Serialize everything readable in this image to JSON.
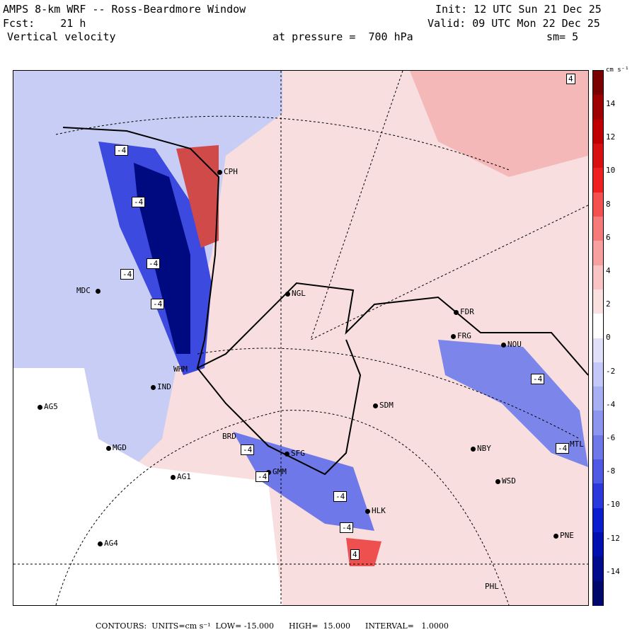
{
  "header": {
    "line1_left": "AMPS 8-km WRF -- Ross-Beardmore Window",
    "line1_right": "Init: 12 UTC Sun 21 Dec 25",
    "line2_left": "Fcst:    21 h",
    "line2_right": "Valid: 09 UTC Mon 22 Dec 25",
    "line3_left": "Vertical velocity",
    "line3_mid": "at pressure =  700 hPa",
    "line3_right": "sm= 5"
  },
  "stations": [
    {
      "name": "CPH"
    },
    {
      "name": "MDC"
    },
    {
      "name": "NGL"
    },
    {
      "name": "FDR"
    },
    {
      "name": "FRG"
    },
    {
      "name": "NOU"
    },
    {
      "name": "WHM"
    },
    {
      "name": "IND"
    },
    {
      "name": "AG5"
    },
    {
      "name": "SDM"
    },
    {
      "name": "MGD"
    },
    {
      "name": "BRD"
    },
    {
      "name": "SFG"
    },
    {
      "name": "GMM"
    },
    {
      "name": "NBY"
    },
    {
      "name": "AG1"
    },
    {
      "name": "WSD"
    },
    {
      "name": "HLK"
    },
    {
      "name": "AG4"
    },
    {
      "name": "PNE"
    },
    {
      "name": "PHL"
    },
    {
      "name": "MTL"
    }
  ],
  "extrema_labels": [
    "-4",
    "-4",
    "-4",
    "-4",
    "-4",
    "-4",
    "-4",
    "-4",
    "-4",
    "-4",
    "-4",
    "4",
    "4"
  ],
  "colorbar": {
    "units_label": "cm s⁻¹",
    "ticks": [
      "14",
      "12",
      "10",
      "8",
      "6",
      "4",
      "2",
      "0",
      "-2",
      "-4",
      "-6",
      "-8",
      "-10",
      "-12",
      "-14"
    ],
    "colors": [
      "#7a0000",
      "#9e0000",
      "#c00000",
      "#d81010",
      "#ee2020",
      "#f55050",
      "#f77a7a",
      "#f8a0a0",
      "#f8c4c4",
      "#fbe0e0",
      "#ffffff",
      "#e0e0fb",
      "#c4c8f8",
      "#a8b0f4",
      "#8c96ee",
      "#6e78e8",
      "#4f5ae4",
      "#2a38dc",
      "#0a1ed0",
      "#0010b0",
      "#000c8c",
      "#00086c"
    ]
  },
  "footer": {
    "text": "CONTOURS:  UNITS=cm s⁻¹  LOW= -15.000      HIGH=  15.000      INTERVAL=   1.0000"
  }
}
